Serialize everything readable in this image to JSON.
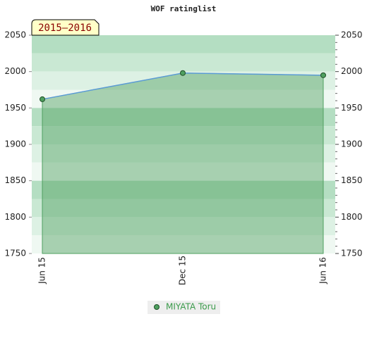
{
  "chart_data": {
    "type": "line",
    "title": "WOF ratinglist",
    "period_label": "2015–2016",
    "categories": [
      "Jun 15",
      "Dec 15",
      "Jun 16"
    ],
    "series": [
      {
        "name": "MIYATA Toru",
        "color": "#4fa060",
        "values": [
          1962,
          1998,
          1995
        ]
      }
    ],
    "ylim": [
      1750,
      2050
    ],
    "yticks": [
      1750,
      1800,
      1850,
      1900,
      1950,
      2000,
      2050
    ],
    "y2lim": [
      1750,
      2050
    ],
    "y2ticks": [
      1750,
      1800,
      1850,
      1900,
      1950,
      2000,
      2050
    ]
  }
}
